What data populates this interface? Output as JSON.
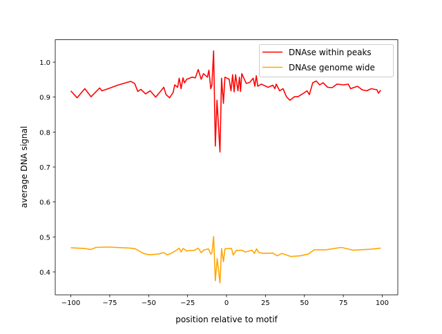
{
  "chart_data": {
    "type": "line",
    "title": "",
    "xlabel": "position relative to motif",
    "ylabel": "average DNA signal",
    "xlim": [
      -110,
      110
    ],
    "ylim": [
      0.3345,
      1.064
    ],
    "xticks": [
      -100,
      -75,
      -50,
      -25,
      0,
      25,
      50,
      75,
      100
    ],
    "xtick_labels": [
      "−100",
      "−75",
      "−50",
      "−25",
      "0",
      "25",
      "50",
      "75",
      "100"
    ],
    "yticks": [
      0.4,
      0.5,
      0.6,
      0.7,
      0.8,
      0.9,
      1.0
    ],
    "ytick_labels": [
      "0.4",
      "0.5",
      "0.6",
      "0.7",
      "0.8",
      "0.9",
      "1.0"
    ],
    "grid": false,
    "legend_position": "top-right",
    "series": [
      {
        "name": "DNAse within peaks",
        "color": "#ff0000",
        "x": [
          -100,
          -96,
          -91,
          -87,
          -81.5,
          -80,
          -76,
          -70,
          -61.5,
          -59,
          -57,
          -55,
          -52,
          -49,
          -45.5,
          -42.5,
          -40.3,
          -38.8,
          -36.6,
          -34.3,
          -33.3,
          -31.4,
          -30.4,
          -29.2,
          -28,
          -27,
          -25.5,
          -22,
          -20,
          -18.2,
          -16.3,
          -14.8,
          -12.3,
          -11.3,
          -10.1,
          -9.4,
          -8.3,
          -7.2,
          -6.1,
          -4.2,
          -3.2,
          -2,
          -1,
          1.7,
          2.9,
          3.9,
          4.9,
          5.8,
          7.3,
          8.3,
          9,
          9.8,
          12.7,
          14.9,
          17.1,
          18.2,
          19.1,
          20.1,
          22.3,
          26.7,
          29.7,
          31.1,
          31.9,
          34.1,
          36.3,
          38.5,
          40.7,
          43.6,
          45.8,
          48.8,
          51.7,
          53.2,
          55.4,
          57.6,
          59.8,
          62,
          65,
          67.9,
          70.9,
          75.3,
          78.2,
          79.7,
          84.1,
          87.1,
          90,
          93,
          96.6,
          97.6,
          99
        ],
        "y": [
          0.918,
          0.898,
          0.924,
          0.901,
          0.926,
          0.918,
          0.924,
          0.934,
          0.945,
          0.939,
          0.916,
          0.922,
          0.909,
          0.918,
          0.9,
          0.916,
          0.928,
          0.907,
          0.898,
          0.913,
          0.935,
          0.928,
          0.954,
          0.924,
          0.955,
          0.941,
          0.951,
          0.957,
          0.955,
          0.979,
          0.951,
          0.967,
          0.957,
          0.977,
          0.924,
          0.934,
          1.032,
          0.76,
          0.891,
          0.743,
          0.954,
          0.882,
          0.957,
          0.951,
          0.918,
          0.964,
          0.915,
          0.964,
          0.918,
          0.957,
          0.916,
          0.967,
          0.939,
          0.942,
          0.954,
          0.931,
          0.961,
          0.931,
          0.937,
          0.928,
          0.934,
          0.924,
          0.937,
          0.918,
          0.924,
          0.901,
          0.891,
          0.901,
          0.901,
          0.909,
          0.918,
          0.907,
          0.941,
          0.946,
          0.935,
          0.941,
          0.928,
          0.927,
          0.937,
          0.935,
          0.937,
          0.924,
          0.931,
          0.921,
          0.918,
          0.924,
          0.921,
          0.911,
          0.92
        ]
      },
      {
        "name": "DNAse genome wide",
        "color": "#ffa500",
        "x": [
          -100,
          -91,
          -87.3,
          -83.7,
          -76.3,
          -61.6,
          -58.6,
          -53.5,
          -49.8,
          -43.9,
          -40.3,
          -38.1,
          -35.1,
          -32.9,
          -30.4,
          -29.2,
          -28,
          -25.5,
          -20.4,
          -18.2,
          -16.3,
          -14.5,
          -11.6,
          -10.1,
          -9.4,
          -8.3,
          -7.2,
          -6,
          -4.2,
          -3.2,
          -2,
          -1,
          3.2,
          4.3,
          6.1,
          9.8,
          12,
          16.4,
          17.9,
          19.3,
          20.8,
          23.8,
          29.7,
          32.6,
          35.5,
          41.4,
          47.3,
          52.5,
          56.2,
          63.5,
          73.8,
          81.2,
          92.9,
          99
        ],
        "y": [
          0.469,
          0.467,
          0.464,
          0.47,
          0.471,
          0.468,
          0.466,
          0.453,
          0.449,
          0.451,
          0.455,
          0.449,
          0.454,
          0.46,
          0.468,
          0.457,
          0.467,
          0.46,
          0.462,
          0.468,
          0.455,
          0.463,
          0.466,
          0.451,
          0.454,
          0.501,
          0.375,
          0.438,
          0.368,
          0.467,
          0.429,
          0.466,
          0.467,
          0.448,
          0.461,
          0.462,
          0.457,
          0.462,
          0.453,
          0.466,
          0.455,
          0.453,
          0.454,
          0.446,
          0.453,
          0.444,
          0.446,
          0.451,
          0.463,
          0.463,
          0.47,
          0.462,
          0.465,
          0.468
        ]
      }
    ]
  }
}
